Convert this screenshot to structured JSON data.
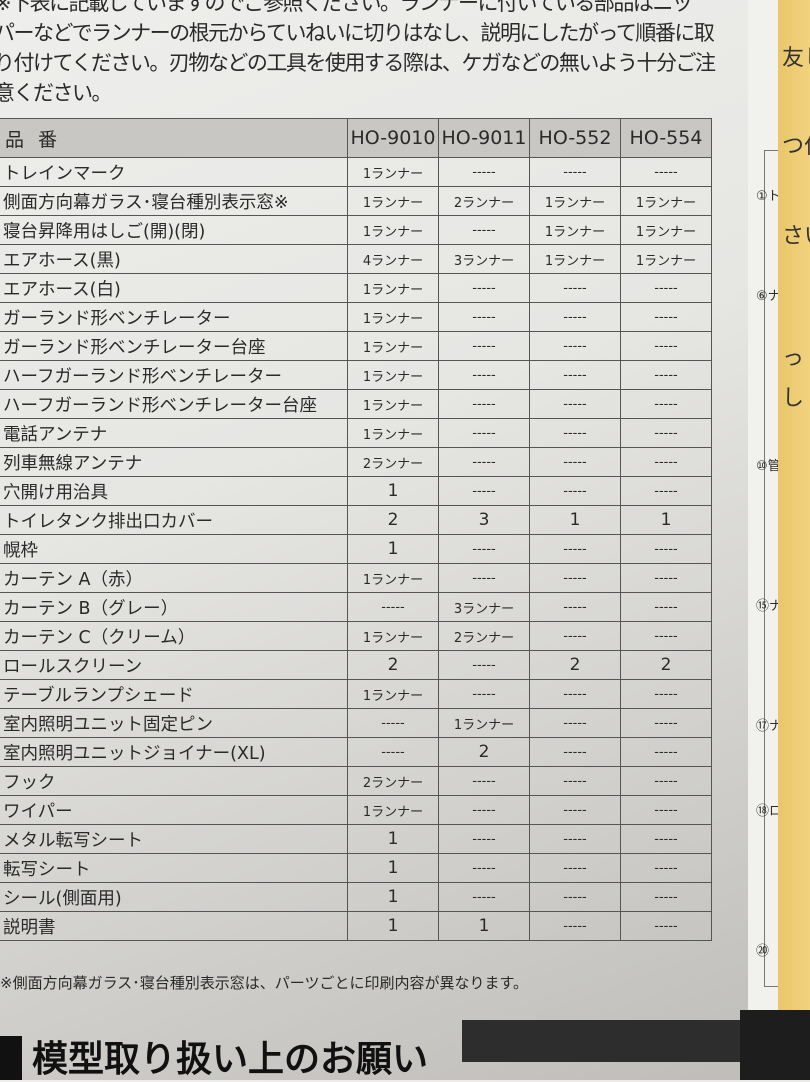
{
  "intro_lines": [
    "※下表に記載していますのでご参照ください。ランナーに付いている部品はニッ",
    "パーなどでランナーの根元からていねいに切りはなし、説明にしたがって順番に取",
    "り付けてください。刃物などの工具を使用する際は、ケガなどの無いよう十分ご注",
    "意ください。"
  ],
  "table": {
    "header_label": "品番",
    "models": [
      "HO-9010",
      "HO-9011",
      "HO-552",
      "HO-554"
    ],
    "rows": [
      {
        "name": "トレインマーク",
        "values": [
          "1ランナー",
          "-----",
          "-----",
          "-----"
        ]
      },
      {
        "name": "側面方向幕ガラス･寝台種別表示窓※",
        "values": [
          "1ランナー",
          "2ランナー",
          "1ランナー",
          "1ランナー"
        ]
      },
      {
        "name": "寝台昇降用はしご(開)(閉)",
        "values": [
          "1ランナー",
          "-----",
          "1ランナー",
          "1ランナー"
        ]
      },
      {
        "name": "エアホース(黒)",
        "values": [
          "4ランナー",
          "3ランナー",
          "1ランナー",
          "1ランナー"
        ]
      },
      {
        "name": "エアホース(白)",
        "values": [
          "1ランナー",
          "-----",
          "-----",
          "-----"
        ]
      },
      {
        "name": "ガーランド形ベンチレーター",
        "values": [
          "1ランナー",
          "-----",
          "-----",
          "-----"
        ]
      },
      {
        "name": "ガーランド形ベンチレーター台座",
        "values": [
          "1ランナー",
          "-----",
          "-----",
          "-----"
        ]
      },
      {
        "name": "ハーフガーランド形ベンチレーター",
        "values": [
          "1ランナー",
          "-----",
          "-----",
          "-----"
        ]
      },
      {
        "name": "ハーフガーランド形ベンチレーター台座",
        "values": [
          "1ランナー",
          "-----",
          "-----",
          "-----"
        ]
      },
      {
        "name": "電話アンテナ",
        "values": [
          "1ランナー",
          "-----",
          "-----",
          "-----"
        ]
      },
      {
        "name": "列車無線アンテナ",
        "values": [
          "2ランナー",
          "-----",
          "-----",
          "-----"
        ]
      },
      {
        "name": "穴開け用治具",
        "values": [
          "1",
          "-----",
          "-----",
          "-----"
        ]
      },
      {
        "name": "トイレタンク排出口カバー",
        "values": [
          "2",
          "3",
          "1",
          "1"
        ]
      },
      {
        "name": "幌枠",
        "values": [
          "1",
          "-----",
          "-----",
          "-----"
        ]
      },
      {
        "name": "カーテン A（赤）",
        "values": [
          "1ランナー",
          "-----",
          "-----",
          "-----"
        ]
      },
      {
        "name": "カーテン B（グレー）",
        "values": [
          "-----",
          "3ランナー",
          "-----",
          "-----"
        ]
      },
      {
        "name": "カーテン C（クリーム）",
        "values": [
          "1ランナー",
          "2ランナー",
          "-----",
          "-----"
        ]
      },
      {
        "name": "ロールスクリーン",
        "values": [
          "2",
          "-----",
          "2",
          "2"
        ]
      },
      {
        "name": "テーブルランプシェード",
        "values": [
          "1ランナー",
          "-----",
          "-----",
          "-----"
        ]
      },
      {
        "name": "室内照明ユニット固定ピン",
        "values": [
          "-----",
          "1ランナー",
          "-----",
          "-----"
        ]
      },
      {
        "name": "室内照明ユニットジョイナー(XL)",
        "values": [
          "-----",
          "2",
          "-----",
          "-----"
        ]
      },
      {
        "name": "フック",
        "values": [
          "2ランナー",
          "-----",
          "-----",
          "-----"
        ]
      },
      {
        "name": "ワイパー",
        "values": [
          "1ランナー",
          "-----",
          "-----",
          "-----"
        ]
      },
      {
        "name": "メタル転写シート",
        "values": [
          "1",
          "-----",
          "-----",
          "-----"
        ]
      },
      {
        "name": "転写シート",
        "values": [
          "1",
          "-----",
          "-----",
          "-----"
        ]
      },
      {
        "name": "シール(側面用)",
        "values": [
          "1",
          "-----",
          "-----",
          "-----"
        ]
      },
      {
        "name": "説明書",
        "values": [
          "1",
          "1",
          "-----",
          "-----"
        ]
      }
    ]
  },
  "footnote": "※側面方向幕ガラス･寝台種別表示窓は、パーツごとに印刷内容が異なります。",
  "section_title": "模型取り扱い上のお願い",
  "right_page": {
    "labels": [
      "①ト",
      "⑥ナ",
      "⑩管",
      "⑮ナ",
      "⑰ナ",
      "⑱ロ",
      "⑳"
    ],
    "yellow_text": [
      "友し",
      "つ付",
      "さい",
      "っ",
      "し"
    ]
  }
}
